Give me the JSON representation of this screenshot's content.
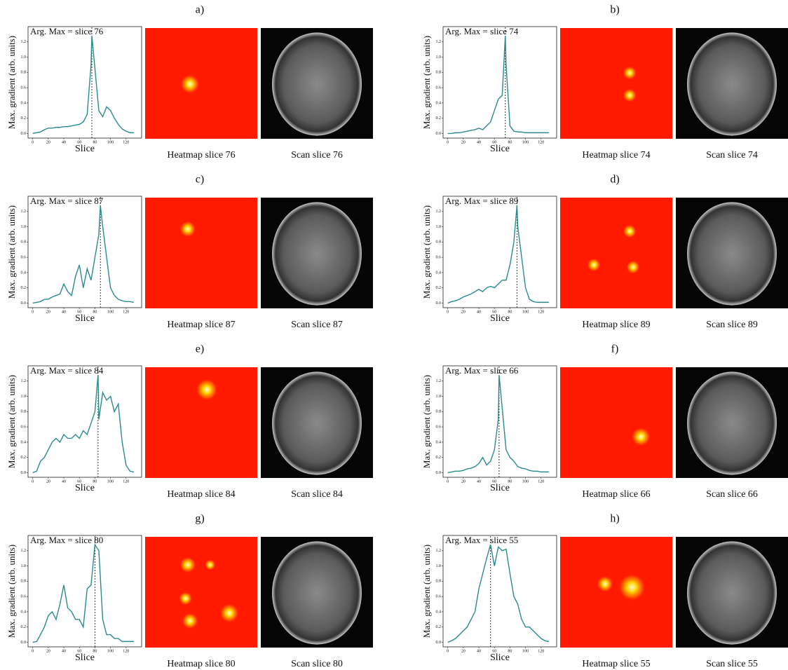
{
  "chart_data": [
    {
      "type": "line",
      "panel_label": "a)",
      "annotation": "Arg. Max = slice 76",
      "argmax": 76,
      "xlabel": "Slice",
      "ylabel": "Max. gradient (arb. units)",
      "heatmap_caption": "Heatmap slice 76",
      "scan_caption": "Scan slice 76",
      "color": "#2a8a8c",
      "x": [
        0,
        5,
        10,
        15,
        20,
        25,
        30,
        35,
        40,
        45,
        50,
        55,
        60,
        65,
        70,
        75,
        76,
        80,
        85,
        90,
        95,
        100,
        105,
        110,
        115,
        120,
        125,
        130
      ],
      "values": [
        0,
        0.01,
        0.02,
        0.05,
        0.07,
        0.07,
        0.08,
        0.08,
        0.09,
        0.09,
        0.1,
        0.11,
        0.12,
        0.15,
        0.25,
        0.9,
        1.28,
        0.85,
        0.3,
        0.22,
        0.35,
        0.3,
        0.2,
        0.12,
        0.06,
        0.03,
        0.01,
        0.01
      ],
      "xlim": [
        -6,
        140
      ],
      "ylim": [
        -0.06,
        1.4
      ],
      "xticks": [
        0,
        20,
        40,
        60,
        80,
        100,
        120
      ],
      "yticks": [
        {
          "value": 0,
          "label": "0.0"
        },
        0.2,
        0.4,
        0.6,
        0.8,
        {
          "value": 1,
          "label": "1.0"
        },
        1.2
      ]
    },
    {
      "type": "line",
      "panel_label": "b)",
      "annotation": "Arg. Max = slice 74",
      "argmax": 74,
      "xlabel": "Slice",
      "ylabel": "Max. gradient (arb. units)",
      "heatmap_caption": "Heatmap slice 74",
      "scan_caption": "Scan slice 74",
      "color": "#2a8a8c",
      "x": [
        0,
        5,
        10,
        15,
        20,
        25,
        30,
        35,
        40,
        45,
        50,
        55,
        60,
        65,
        70,
        74,
        75,
        80,
        85,
        90,
        95,
        100,
        105,
        110,
        115,
        120,
        125,
        130
      ],
      "values": [
        0,
        0,
        0.01,
        0.01,
        0.02,
        0.03,
        0.04,
        0.05,
        0.07,
        0.05,
        0.1,
        0.15,
        0.3,
        0.45,
        0.5,
        1.28,
        0.9,
        0.1,
        0.03,
        0.02,
        0.02,
        0.01,
        0.01,
        0.01,
        0.01,
        0.01,
        0.01,
        0.01
      ],
      "xlim": [
        -6,
        140
      ],
      "ylim": [
        -0.06,
        1.4
      ],
      "xticks": [
        0,
        20,
        40,
        60,
        80,
        100,
        120
      ],
      "yticks": [
        {
          "value": 0,
          "label": "0.0"
        },
        0.2,
        0.4,
        0.6,
        0.8,
        {
          "value": 1,
          "label": "1.0"
        },
        1.2
      ]
    },
    {
      "type": "line",
      "panel_label": "c)",
      "annotation": "Arg. Max = slice 87",
      "argmax": 87,
      "xlabel": "Slice",
      "ylabel": "Max. gradient (arb. units)",
      "heatmap_caption": "Heatmap slice 87",
      "scan_caption": "Scan slice 87",
      "color": "#2a8a8c",
      "x": [
        0,
        5,
        10,
        15,
        20,
        25,
        30,
        35,
        40,
        45,
        50,
        55,
        60,
        65,
        70,
        75,
        80,
        85,
        87,
        90,
        95,
        100,
        105,
        110,
        115,
        120,
        125,
        130
      ],
      "values": [
        0,
        0.01,
        0.02,
        0.05,
        0.05,
        0.08,
        0.1,
        0.12,
        0.25,
        0.15,
        0.1,
        0.35,
        0.5,
        0.2,
        0.45,
        0.3,
        0.6,
        0.9,
        1.28,
        1.0,
        0.6,
        0.2,
        0.1,
        0.05,
        0.03,
        0.02,
        0.02,
        0.01
      ],
      "xlim": [
        -6,
        140
      ],
      "ylim": [
        -0.06,
        1.4
      ],
      "xticks": [
        0,
        20,
        40,
        60,
        80,
        100,
        120
      ],
      "yticks": [
        {
          "value": 0,
          "label": "0.0"
        },
        0.2,
        0.4,
        0.6,
        0.8,
        {
          "value": 1,
          "label": "1.0"
        },
        1.2
      ]
    },
    {
      "type": "line",
      "panel_label": "d)",
      "annotation": "Arg. Max = slice 89",
      "argmax": 89,
      "xlabel": "Slice",
      "ylabel": "Max. gradient (arb. units)",
      "heatmap_caption": "Heatmap slice 89",
      "scan_caption": "Scan slice 89",
      "color": "#2a8a8c",
      "x": [
        0,
        5,
        10,
        15,
        20,
        25,
        30,
        35,
        40,
        45,
        50,
        55,
        60,
        65,
        70,
        75,
        80,
        85,
        89,
        90,
        95,
        100,
        105,
        110,
        115,
        120,
        125,
        130
      ],
      "values": [
        0,
        0.02,
        0.03,
        0.05,
        0.08,
        0.1,
        0.12,
        0.15,
        0.18,
        0.15,
        0.2,
        0.22,
        0.2,
        0.25,
        0.3,
        0.3,
        0.5,
        0.8,
        1.28,
        1.0,
        0.6,
        0.2,
        0.05,
        0.02,
        0.01,
        0.01,
        0.01,
        0.01
      ],
      "xlim": [
        -6,
        140
      ],
      "ylim": [
        -0.06,
        1.4
      ],
      "xticks": [
        0,
        20,
        40,
        60,
        80,
        100,
        120
      ],
      "yticks": [
        {
          "value": 0,
          "label": "0.0"
        },
        0.2,
        0.4,
        0.6,
        0.8,
        {
          "value": 1,
          "label": "1.0"
        },
        1.2
      ]
    },
    {
      "type": "line",
      "panel_label": "e)",
      "annotation": "Arg. Max = slice 84",
      "argmax": 84,
      "xlabel": "Slice",
      "ylabel": "Max. gradient (arb. units)",
      "heatmap_caption": "Heatmap slice 84",
      "scan_caption": "Scan slice 84",
      "color": "#2a8a8c",
      "x": [
        0,
        5,
        10,
        15,
        20,
        25,
        30,
        35,
        40,
        45,
        50,
        55,
        60,
        65,
        70,
        75,
        80,
        84,
        85,
        90,
        95,
        100,
        105,
        110,
        115,
        120,
        125,
        130
      ],
      "values": [
        0,
        0.02,
        0.15,
        0.2,
        0.3,
        0.4,
        0.45,
        0.4,
        0.5,
        0.45,
        0.45,
        0.5,
        0.45,
        0.55,
        0.5,
        0.65,
        0.8,
        1.28,
        0.7,
        1.05,
        0.95,
        1.0,
        0.8,
        0.9,
        0.4,
        0.1,
        0.02,
        0.01
      ],
      "xlim": [
        -6,
        140
      ],
      "ylim": [
        -0.06,
        1.4
      ],
      "xticks": [
        0,
        20,
        40,
        60,
        80,
        100,
        120
      ],
      "yticks": [
        {
          "value": 0,
          "label": "0.0"
        },
        0.2,
        0.4,
        0.6,
        0.8,
        {
          "value": 1,
          "label": "1.0"
        },
        1.2
      ]
    },
    {
      "type": "line",
      "panel_label": "f)",
      "annotation": "Arg. Max = slice 66",
      "argmax": 66,
      "xlabel": "Slice",
      "ylabel": "Max. gradient (arb. units)",
      "heatmap_caption": "Heatmap slice 66",
      "scan_caption": "Scan slice 66",
      "color": "#2a8a8c",
      "x": [
        0,
        5,
        10,
        15,
        20,
        25,
        30,
        35,
        40,
        45,
        50,
        55,
        60,
        65,
        66,
        70,
        75,
        80,
        85,
        90,
        95,
        100,
        105,
        110,
        115,
        120,
        125,
        130
      ],
      "values": [
        0,
        0.01,
        0.02,
        0.02,
        0.03,
        0.05,
        0.06,
        0.08,
        0.12,
        0.2,
        0.1,
        0.15,
        0.3,
        0.7,
        1.28,
        0.85,
        0.3,
        0.2,
        0.15,
        0.08,
        0.06,
        0.05,
        0.03,
        0.02,
        0.02,
        0.01,
        0.01,
        0.01
      ],
      "xlim": [
        -6,
        140
      ],
      "ylim": [
        -0.06,
        1.4
      ],
      "xticks": [
        0,
        20,
        40,
        60,
        80,
        100,
        120
      ],
      "yticks": [
        {
          "value": 0,
          "label": "0.0"
        },
        0.2,
        0.4,
        0.6,
        0.8,
        {
          "value": 1,
          "label": "1.0"
        },
        1.2
      ]
    },
    {
      "type": "line",
      "panel_label": "g)",
      "annotation": "Arg. Max = slice 80",
      "argmax": 80,
      "xlabel": "Slice",
      "ylabel": "Max. gradient (arb. units)",
      "heatmap_caption": "Heatmap slice 80",
      "scan_caption": "Scan slice 80",
      "color": "#2a8a8c",
      "x": [
        0,
        5,
        10,
        15,
        20,
        25,
        30,
        35,
        40,
        45,
        50,
        55,
        60,
        65,
        70,
        75,
        80,
        85,
        90,
        95,
        100,
        105,
        110,
        115,
        120,
        125,
        130
      ],
      "values": [
        0,
        0.01,
        0.1,
        0.2,
        0.35,
        0.4,
        0.3,
        0.5,
        0.75,
        0.45,
        0.4,
        0.3,
        0.3,
        0.2,
        0.7,
        0.75,
        1.28,
        1.2,
        0.3,
        0.1,
        0.1,
        0.05,
        0.05,
        0.01,
        0.01,
        0.01,
        0.01
      ],
      "xlim": [
        -6,
        140
      ],
      "ylim": [
        -0.06,
        1.4
      ],
      "xticks": [
        0,
        20,
        40,
        60,
        80,
        100,
        120
      ],
      "yticks": [
        {
          "value": 0,
          "label": "0.0"
        },
        0.2,
        0.4,
        0.6,
        0.8,
        {
          "value": 1,
          "label": "1.0"
        },
        1.2
      ]
    },
    {
      "type": "line",
      "panel_label": "h)",
      "annotation": "Arg. Max = slice 55",
      "argmax": 55,
      "xlabel": "Slice",
      "ylabel": "Max. gradient (arb. units)",
      "heatmap_caption": "Heatmap slice 55",
      "scan_caption": "Scan slice 55",
      "color": "#2a8a8c",
      "x": [
        0,
        5,
        10,
        15,
        20,
        25,
        30,
        35,
        40,
        45,
        50,
        55,
        60,
        65,
        70,
        75,
        80,
        85,
        90,
        95,
        100,
        105,
        110,
        115,
        120,
        125,
        130
      ],
      "values": [
        0,
        0.02,
        0.05,
        0.1,
        0.15,
        0.2,
        0.3,
        0.4,
        0.7,
        0.9,
        1.1,
        1.28,
        1.0,
        1.25,
        1.2,
        1.22,
        0.9,
        0.6,
        0.5,
        0.3,
        0.2,
        0.2,
        0.15,
        0.1,
        0.05,
        0.02,
        0.01
      ],
      "xlim": [
        -6,
        140
      ],
      "ylim": [
        -0.06,
        1.4
      ],
      "xticks": [
        0,
        20,
        40,
        60,
        80,
        100,
        120
      ],
      "yticks": [
        {
          "value": 0,
          "label": "0.0"
        },
        0.2,
        0.4,
        0.6,
        0.8,
        {
          "value": 1,
          "label": "1.0"
        },
        1.2
      ]
    }
  ]
}
